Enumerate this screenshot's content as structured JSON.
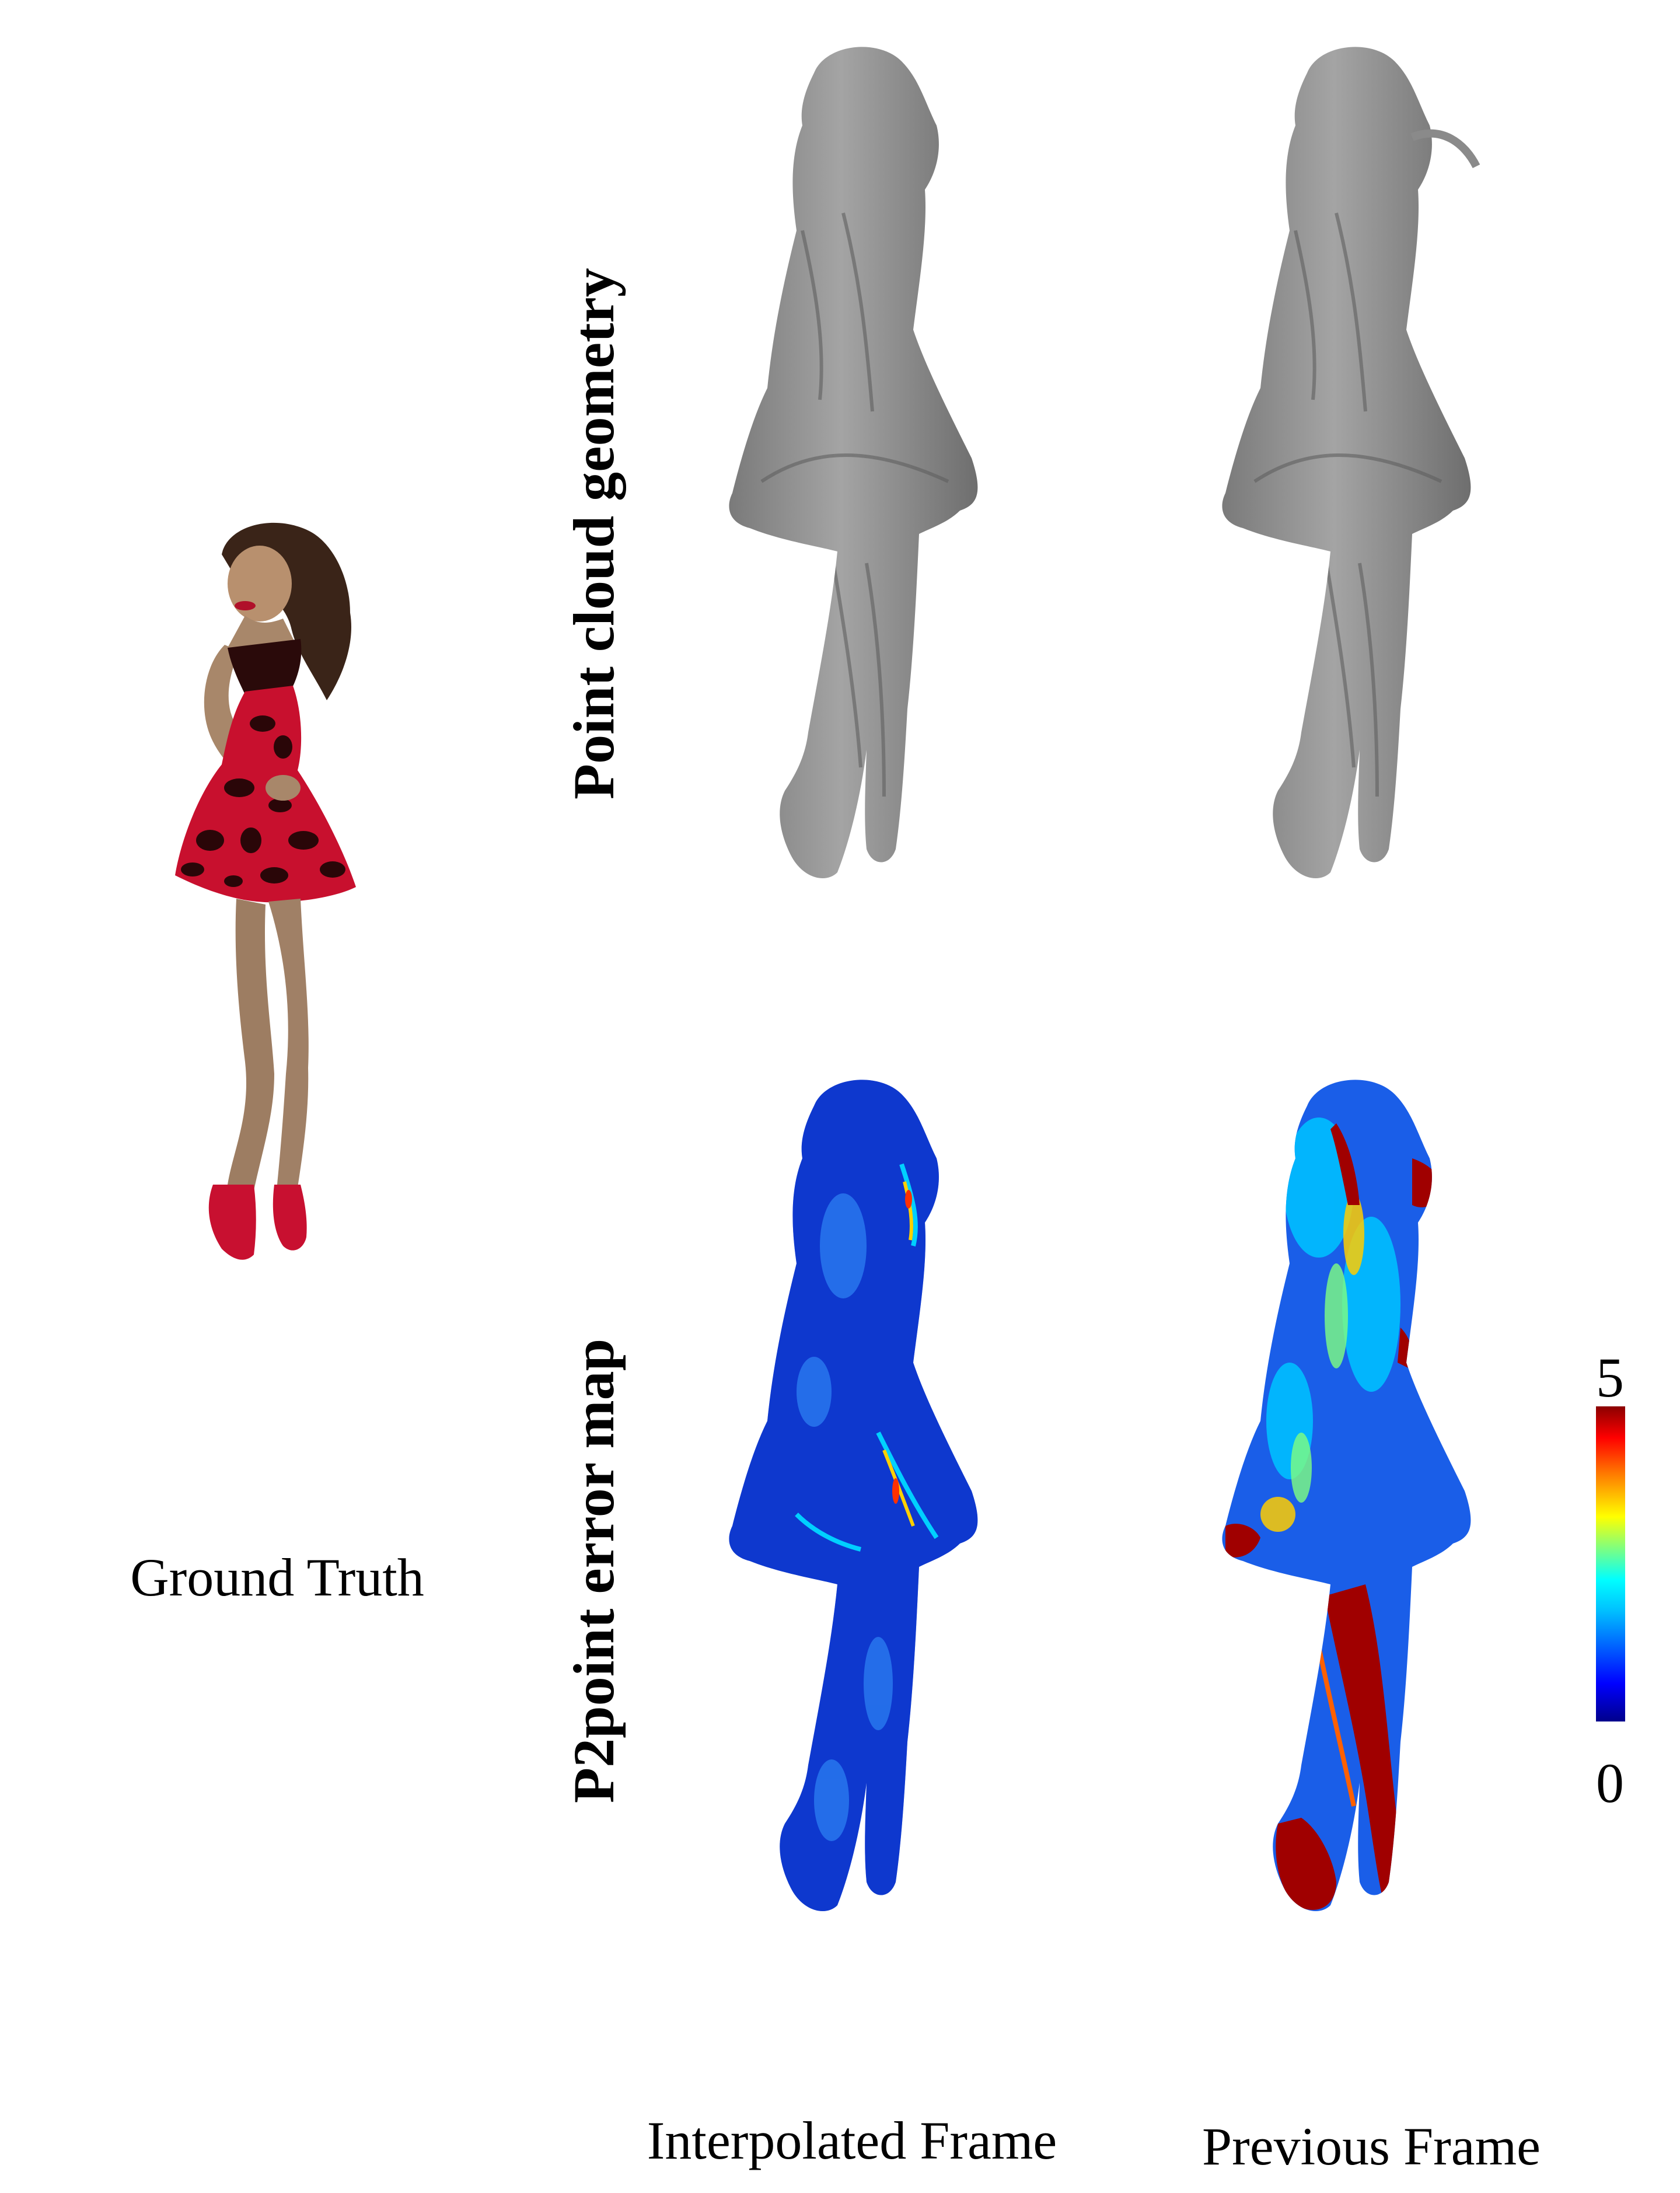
{
  "figure": {
    "row_labels": {
      "geometry": "Point cloud geometry",
      "error_map": "P2point error map"
    },
    "captions": {
      "ground_truth": "Ground Truth",
      "interpolated": "Interpolated Frame",
      "previous": "Previous Frame"
    },
    "colorbar": {
      "max_label": "5",
      "min_label": "0",
      "colormap": "jet",
      "stops": [
        "#00008b",
        "#0000ff",
        "#00bfff",
        "#00ffff",
        "#7fff7f",
        "#ffff00",
        "#ff8000",
        "#ff0000",
        "#8b0000"
      ]
    },
    "colors": {
      "dress": "#c8102e",
      "lace": "#2a0a0a",
      "skin": "#a8876a",
      "hair": "#3a2418",
      "geometry_gray": "#8f8f8f",
      "error_low": "#1040d8",
      "error_high": "#a00000"
    }
  }
}
